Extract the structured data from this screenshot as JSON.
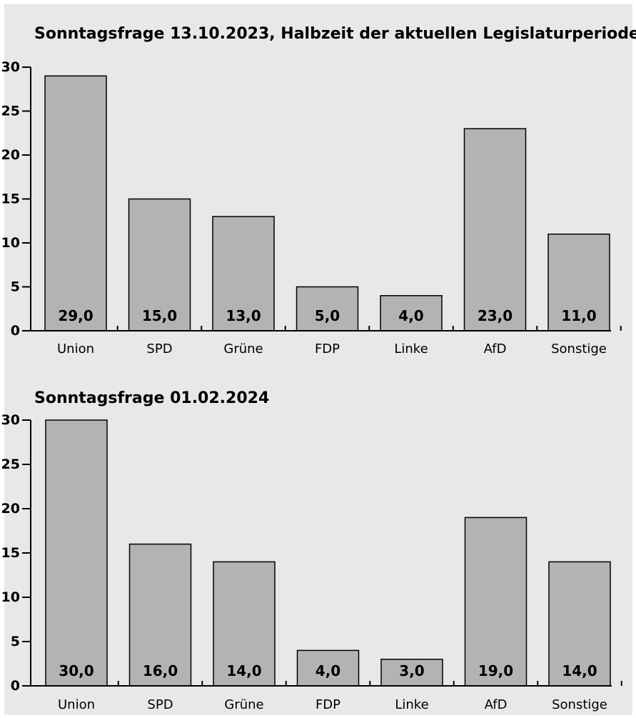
{
  "chart_data": [
    {
      "type": "bar",
      "title": "Sonntagsfrage 13.10.2023, Halbzeit der aktuellen Legislaturperiode",
      "categories": [
        "Union",
        "SPD",
        "Grüne",
        "FDP",
        "Linke",
        "AfD",
        "Sonstige"
      ],
      "values": [
        29.0,
        15.0,
        13.0,
        5.0,
        4.0,
        23.0,
        11.0
      ],
      "value_labels": [
        "29,0",
        "15,0",
        "13,0",
        "5,0",
        "4,0",
        "23,0",
        "11,0"
      ],
      "yticks": [
        0,
        5,
        10,
        15,
        20,
        25,
        30
      ],
      "ylim": [
        0,
        30
      ],
      "xlabel": "",
      "ylabel": "",
      "grid": false,
      "legend": "none",
      "bar_color": "#b3b3b3"
    },
    {
      "type": "bar",
      "title": "Sonntagsfrage 01.02.2024",
      "categories": [
        "Union",
        "SPD",
        "Grüne",
        "FDP",
        "Linke",
        "AfD",
        "Sonstige"
      ],
      "values": [
        30.0,
        16.0,
        14.0,
        4.0,
        3.0,
        19.0,
        14.0
      ],
      "value_labels": [
        "30,0",
        "16,0",
        "14,0",
        "4,0",
        "3,0",
        "19,0",
        "14,0"
      ],
      "yticks": [
        0,
        5,
        10,
        15,
        20,
        25,
        30
      ],
      "ylim": [
        0,
        30
      ],
      "xlabel": "",
      "ylabel": "",
      "grid": false,
      "legend": "none",
      "bar_color": "#b3b3b3"
    }
  ],
  "background_color": "#e8e8e8"
}
